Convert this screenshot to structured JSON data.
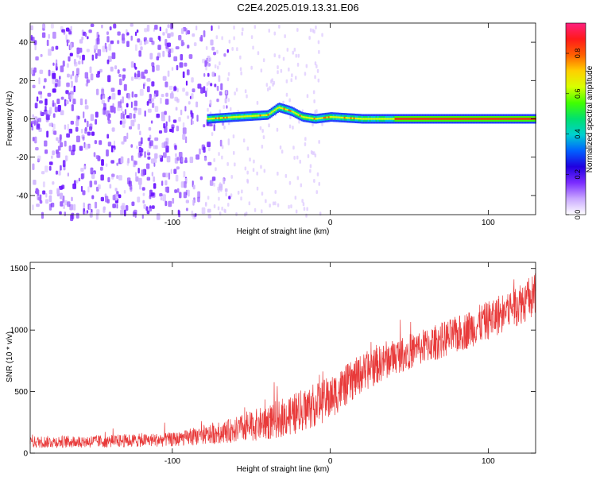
{
  "figure": {
    "title": "C2E4.2025.019.13.31.E06"
  },
  "chart_data": [
    {
      "type": "heatmap",
      "xlabel": "Height of straight line (km)",
      "ylabel": "Frequency (Hz)",
      "xlim": [
        -190,
        130
      ],
      "ylim": [
        -50,
        50
      ],
      "x_ticks": [
        -100,
        0,
        100
      ],
      "x_tick_labels": [
        "-100",
        "0",
        "100"
      ],
      "y_ticks": [
        -40,
        -20,
        0,
        20,
        40
      ],
      "y_tick_labels": [
        "-40",
        "-20",
        "0",
        "20",
        "40"
      ],
      "grid": false,
      "colorbar": {
        "label": "Normalized spectral amplitude",
        "range": [
          0,
          0.95
        ],
        "ticks": [
          0.0,
          0.2,
          0.4,
          0.6,
          0.8
        ],
        "tick_labels": [
          "0.0",
          "0.2",
          "0.4",
          "0.6",
          "0.8"
        ],
        "colormap": [
          "#ffffff",
          "#c9a8ff",
          "#7b2cff",
          "#2000e0",
          "#0060ff",
          "#00d0d0",
          "#00e070",
          "#40ff00",
          "#d8ff00",
          "#ffd000",
          "#ff6000",
          "#ff1a1a",
          "#ff2080"
        ]
      },
      "features": {
        "noise_region_x": [
          -190,
          -80
        ],
        "noise_color": "#7b2cff",
        "tone_start_x": -78,
        "tone_center_hz": [
          {
            "x": -78,
            "y": 0
          },
          {
            "x": -60,
            "y": 1
          },
          {
            "x": -40,
            "y": 2
          },
          {
            "x": -33,
            "y": 6
          },
          {
            "x": -25,
            "y": 4
          },
          {
            "x": -18,
            "y": 1
          },
          {
            "x": -10,
            "y": 0
          },
          {
            "x": 0,
            "y": 1
          },
          {
            "x": 20,
            "y": 0
          },
          {
            "x": 130,
            "y": 0
          }
        ]
      }
    },
    {
      "type": "line",
      "xlabel": "Height of straight line (km)",
      "ylabel": "SNR (10 * v/v)",
      "xlim": [
        -190,
        130
      ],
      "ylim": [
        0,
        1550
      ],
      "x_ticks": [
        -100,
        0,
        100
      ],
      "x_tick_labels": [
        "-100",
        "0",
        "100"
      ],
      "y_ticks": [
        0,
        500,
        1000,
        1500
      ],
      "y_tick_labels": [
        "0",
        "500",
        "1000",
        "1500"
      ],
      "grid": false,
      "series_color": "#e83a3a",
      "envelope": [
        {
          "x": -190,
          "mean": 90,
          "spread": 60
        },
        {
          "x": -150,
          "mean": 95,
          "spread": 65
        },
        {
          "x": -100,
          "mean": 110,
          "spread": 70
        },
        {
          "x": -80,
          "mean": 140,
          "spread": 90
        },
        {
          "x": -60,
          "mean": 190,
          "spread": 130
        },
        {
          "x": -40,
          "mean": 250,
          "spread": 180
        },
        {
          "x": -20,
          "mean": 330,
          "spread": 220
        },
        {
          "x": 0,
          "mean": 450,
          "spread": 220
        },
        {
          "x": 20,
          "mean": 650,
          "spread": 200
        },
        {
          "x": 40,
          "mean": 780,
          "spread": 180
        },
        {
          "x": 60,
          "mean": 870,
          "spread": 180
        },
        {
          "x": 80,
          "mean": 960,
          "spread": 190
        },
        {
          "x": 100,
          "mean": 1080,
          "spread": 200
        },
        {
          "x": 120,
          "mean": 1220,
          "spread": 220
        },
        {
          "x": 130,
          "mean": 1280,
          "spread": 230
        }
      ]
    }
  ]
}
